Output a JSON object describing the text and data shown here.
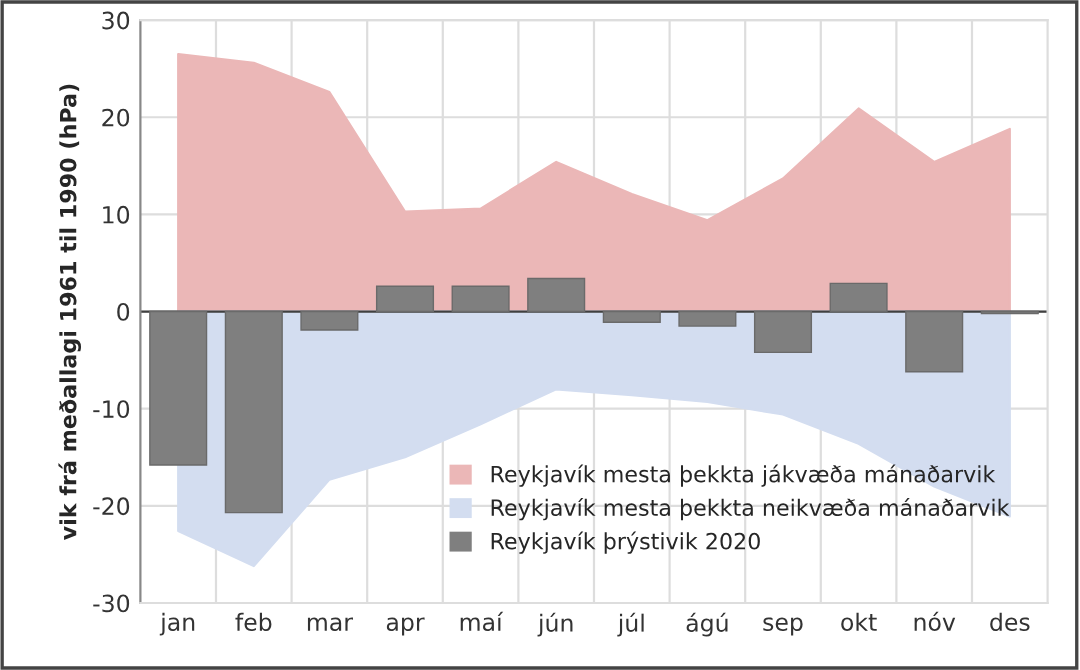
{
  "chart_data": {
    "type": "bar",
    "ylabel": "vik frá meðallagi 1961 til 1990 (hPa)",
    "categories": [
      "jan",
      "feb",
      "mar",
      "apr",
      "maí",
      "jún",
      "júl",
      "ágú",
      "sep",
      "okt",
      "nóv",
      "des"
    ],
    "series": [
      {
        "name": "Reykjavík mesta þekkta jákvæða mánaðarvik",
        "type": "area",
        "color": "#ebb7b7",
        "values": [
          26.5,
          25.6,
          22.6,
          10.3,
          10.6,
          15.4,
          12.1,
          9.4,
          13.7,
          20.9,
          15.4,
          18.8
        ]
      },
      {
        "name": "Reykjavík mesta þekkta neikvæða mánaðarvik",
        "type": "area",
        "color": "#d3ddf0",
        "values": [
          -22.6,
          -26.2,
          -17.3,
          -15.0,
          -11.6,
          -8.0,
          -8.6,
          -9.3,
          -10.6,
          -13.6,
          -18.0,
          -21.1
        ]
      },
      {
        "name": "Reykjavík þrýstivik 2020",
        "color": "#7f7f7f",
        "values": [
          -15.8,
          -20.7,
          -1.9,
          2.6,
          2.6,
          3.4,
          -1.1,
          -1.5,
          -4.2,
          2.9,
          -6.2,
          -0.2
        ]
      }
    ],
    "ylim": [
      -30,
      30
    ],
    "yticks": [
      -30,
      -20,
      -10,
      0,
      10,
      20,
      30
    ],
    "grid": true,
    "legend": "bottom right"
  }
}
